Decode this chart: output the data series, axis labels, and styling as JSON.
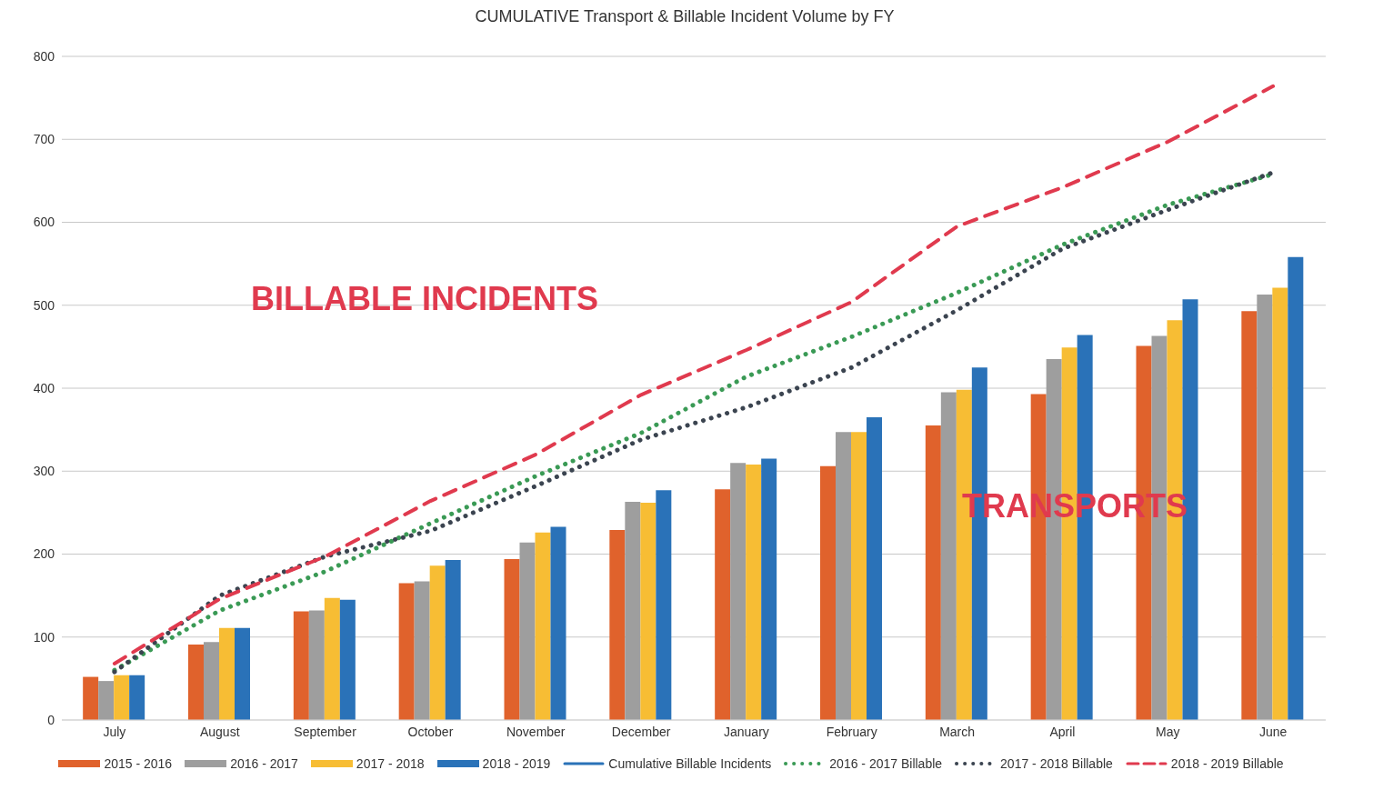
{
  "chart_data": {
    "type": "bar",
    "title": "CUMULATIVE Transport & Billable Incident Volume by FY",
    "categories": [
      "July",
      "August",
      "September",
      "October",
      "November",
      "December",
      "January",
      "February",
      "March",
      "April",
      "May",
      "June"
    ],
    "series": [
      {
        "name": "2015 - 2016",
        "color": "#e0622c",
        "values": [
          52,
          91,
          131,
          165,
          194,
          229,
          278,
          306,
          355,
          393,
          451,
          493
        ]
      },
      {
        "name": "2016 - 2017",
        "color": "#9e9e9e",
        "values": [
          47,
          94,
          132,
          167,
          214,
          263,
          310,
          347,
          395,
          435,
          463,
          513
        ]
      },
      {
        "name": "2017 - 2018",
        "color": "#f7bd34",
        "values": [
          54,
          111,
          147,
          186,
          226,
          262,
          308,
          347,
          398,
          449,
          482,
          521
        ]
      },
      {
        "name": "2018 - 2019",
        "color": "#2a72b8",
        "values": [
          54,
          111,
          145,
          193,
          233,
          277,
          315,
          365,
          425,
          464,
          507,
          558
        ]
      },
      {
        "name": "Cumulative Billable Incidents",
        "type": "line",
        "color": "#2a72b8",
        "line_style": "solid",
        "values": [
          null,
          null,
          null,
          null,
          null,
          null,
          null,
          null,
          null,
          null,
          null,
          null
        ]
      },
      {
        "name": "2016 - 2017 Billable",
        "type": "line",
        "color": "#3a9a55",
        "line_style": "dotted",
        "values": [
          60,
          132,
          179,
          237,
          294,
          346,
          414,
          462,
          515,
          573,
          621,
          658
        ]
      },
      {
        "name": "2017 - 2018 Billable",
        "type": "line",
        "color": "#3b4450",
        "line_style": "dotted",
        "values": [
          58,
          150,
          197,
          228,
          282,
          338,
          377,
          425,
          494,
          568,
          615,
          660
        ]
      },
      {
        "name": "2018 - 2019 Billable",
        "type": "line",
        "color": "#e03a4e",
        "line_style": "dashed",
        "values": [
          68,
          146,
          197,
          264,
          320,
          392,
          446,
          504,
          595,
          642,
          697,
          764
        ]
      }
    ],
    "ylim": [
      0,
      800
    ],
    "yticks": [
      0,
      100,
      200,
      300,
      400,
      500,
      600,
      700,
      800
    ],
    "grid": "y",
    "legend": "bottom",
    "marker": "none",
    "annotations": [
      "BILLABLE INCIDENTS",
      "TRANSPORTS"
    ]
  }
}
